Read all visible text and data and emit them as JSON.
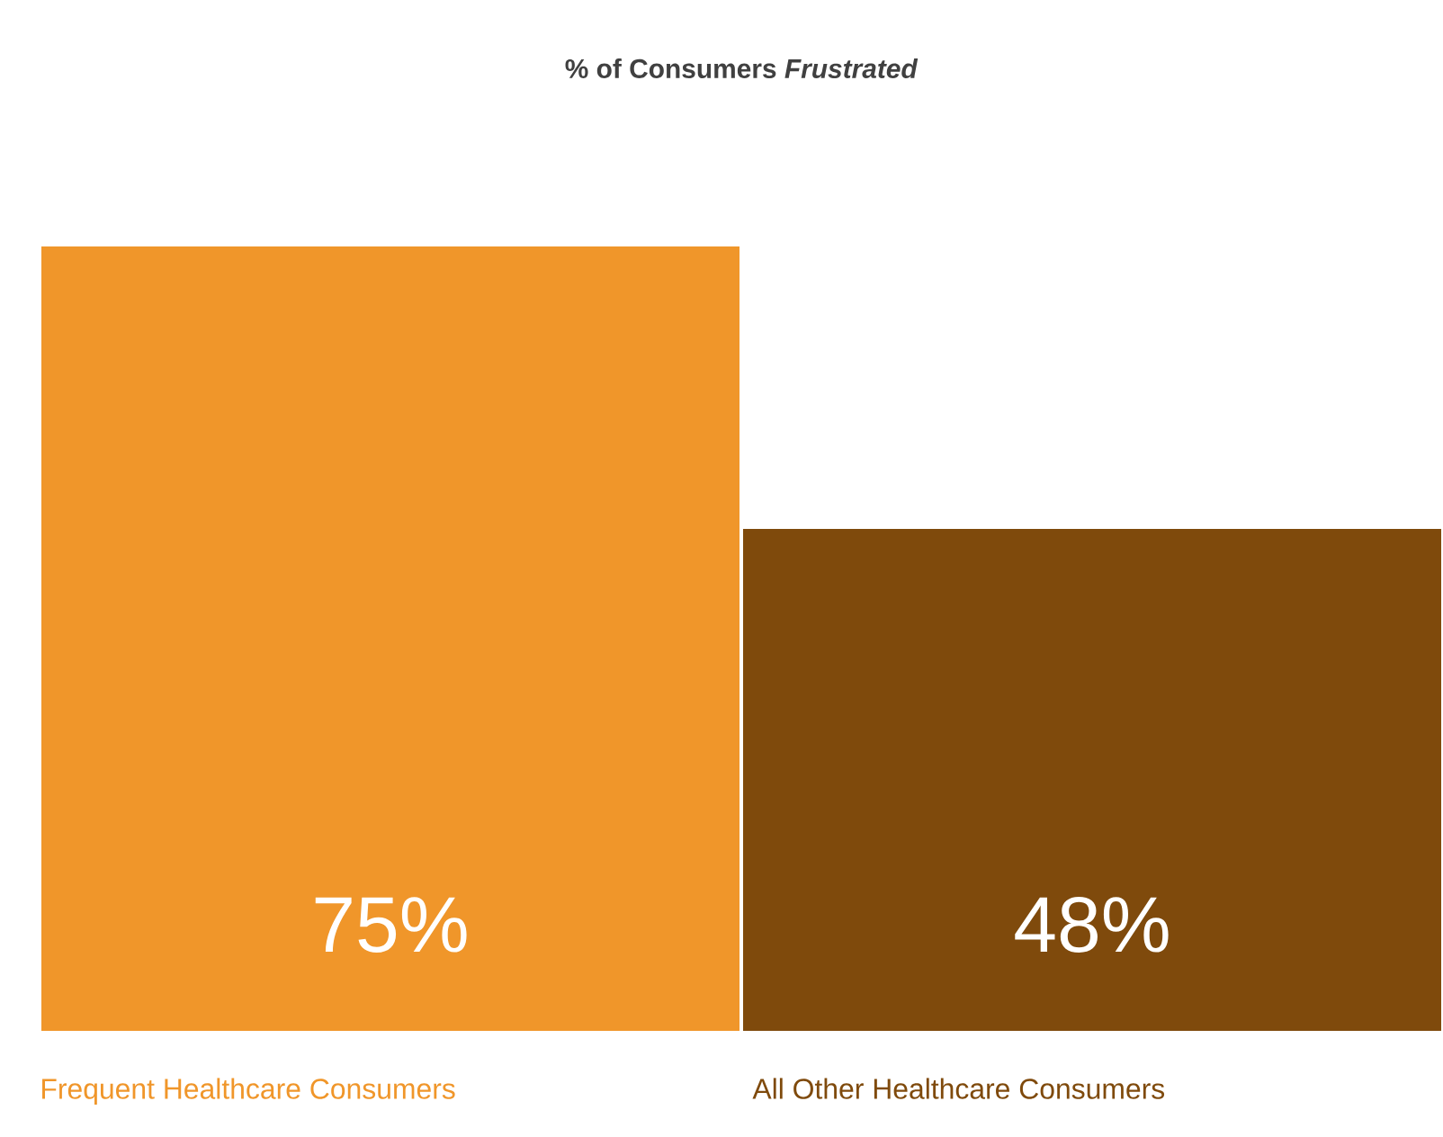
{
  "chart_data": {
    "type": "bar",
    "title": "% of Consumers *Frustrated*",
    "categories": [
      "Frequent Healthcare Consumers",
      "All Other Healthcare Consumers"
    ],
    "values": [
      75,
      48
    ],
    "colors": [
      "#f0962a",
      "#7f4a0c"
    ],
    "value_labels": [
      "75%",
      "48%"
    ]
  }
}
